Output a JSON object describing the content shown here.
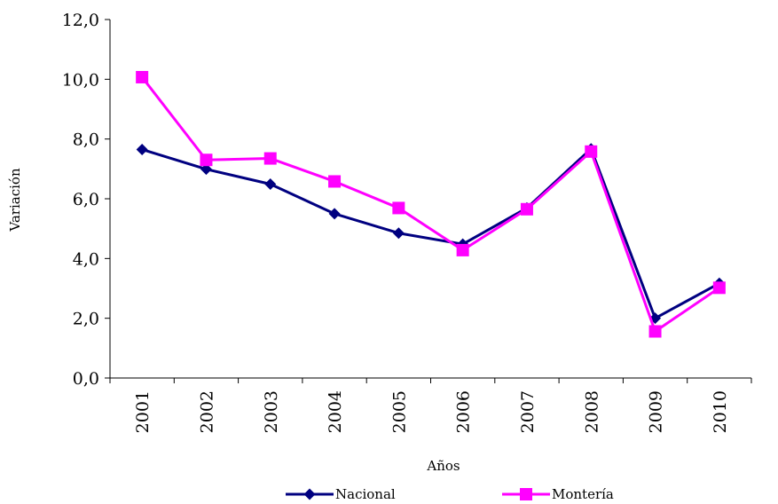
{
  "chart_data": {
    "type": "line",
    "xlabel": "Años",
    "ylabel": "Variación",
    "categories": [
      "2001",
      "2002",
      "2003",
      "2004",
      "2005",
      "2006",
      "2007",
      "2008",
      "2009",
      "2010"
    ],
    "ylim": [
      0,
      12
    ],
    "yticks": [
      "0,0",
      "2,0",
      "4,0",
      "6,0",
      "8,0",
      "10,0",
      "12,0"
    ],
    "grid": false,
    "legend_position": "bottom",
    "series": [
      {
        "name": "Nacional",
        "color": "#000080",
        "marker": "diamond",
        "values": [
          7.65,
          6.99,
          6.49,
          5.5,
          4.85,
          4.48,
          5.69,
          7.67,
          2.0,
          3.17
        ]
      },
      {
        "name": "Montería",
        "color": "#FF00FF",
        "marker": "square",
        "values": [
          10.07,
          7.3,
          7.35,
          6.58,
          5.69,
          4.28,
          5.65,
          7.58,
          1.56,
          3.02
        ]
      }
    ]
  }
}
